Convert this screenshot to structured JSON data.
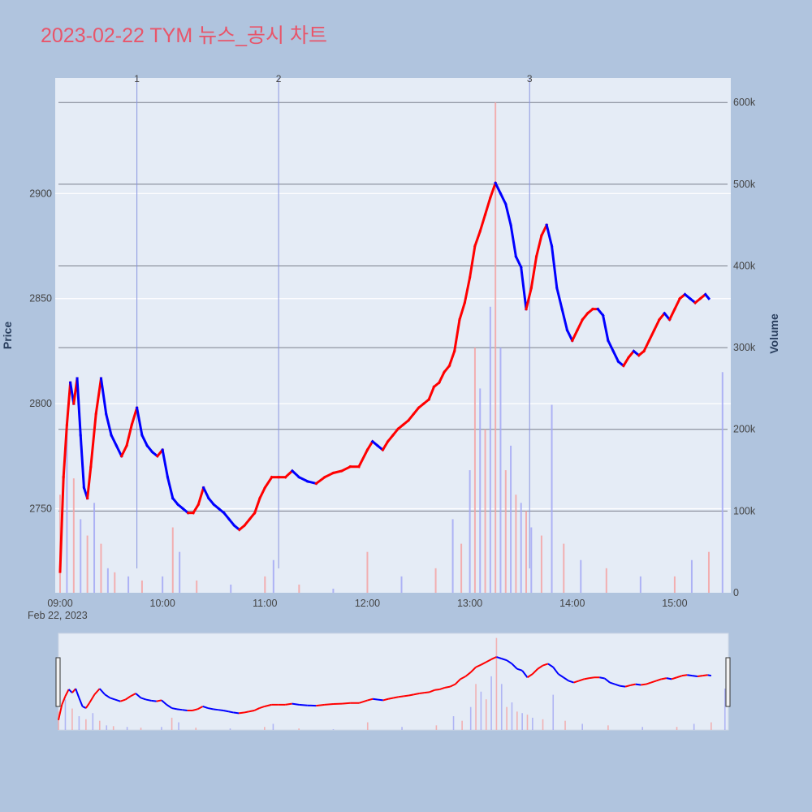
{
  "title": "2023-02-22 TYM 뉴스_공시 차트",
  "colors": {
    "page_bg": "#b0c4de",
    "plot_bg": "#e5ecf6",
    "title": "#e8556a",
    "up": "#ff0000",
    "down": "#0000ff",
    "vol_up": "#f4a3a3",
    "vol_down": "#a3a8f4",
    "event_line": "#8a95e0"
  },
  "chart_data": {
    "type": "candlestick",
    "date_label": "Feb 22, 2023",
    "x_ticks": [
      "09:00",
      "10:00",
      "11:00",
      "12:00",
      "13:00",
      "14:00",
      "15:00"
    ],
    "x_range": [
      "09:00",
      "15:30"
    ],
    "ylabel": "Price",
    "y_ticks": [
      2750,
      2800,
      2850,
      2900
    ],
    "ylim": [
      2710,
      2955
    ],
    "y2label": "Volume",
    "y2_ticks": [
      0,
      100000,
      200000,
      300000,
      400000,
      500000,
      600000
    ],
    "y2_tick_labels": [
      "0",
      "100k",
      "200k",
      "300k",
      "400k",
      "500k",
      "600k"
    ],
    "y2lim": [
      0,
      630000
    ],
    "grid": true,
    "event_markers": [
      {
        "label": "1",
        "time": "09:45"
      },
      {
        "label": "2",
        "time": "11:08"
      },
      {
        "label": "3",
        "time": "13:35"
      }
    ],
    "price_path": [
      [
        "09:00",
        2720
      ],
      [
        "09:02",
        2765
      ],
      [
        "09:04",
        2790
      ],
      [
        "09:06",
        2810
      ],
      [
        "09:08",
        2800
      ],
      [
        "09:10",
        2812
      ],
      [
        "09:12",
        2785
      ],
      [
        "09:14",
        2760
      ],
      [
        "09:16",
        2755
      ],
      [
        "09:18",
        2770
      ],
      [
        "09:21",
        2795
      ],
      [
        "09:24",
        2812
      ],
      [
        "09:27",
        2795
      ],
      [
        "09:30",
        2785
      ],
      [
        "09:33",
        2780
      ],
      [
        "09:36",
        2775
      ],
      [
        "09:39",
        2780
      ],
      [
        "09:42",
        2790
      ],
      [
        "09:45",
        2798
      ],
      [
        "09:48",
        2785
      ],
      [
        "09:51",
        2780
      ],
      [
        "09:54",
        2777
      ],
      [
        "09:57",
        2775
      ],
      [
        "10:00",
        2778
      ],
      [
        "10:03",
        2765
      ],
      [
        "10:06",
        2755
      ],
      [
        "10:09",
        2752
      ],
      [
        "10:12",
        2750
      ],
      [
        "10:15",
        2748
      ],
      [
        "10:18",
        2748
      ],
      [
        "10:21",
        2752
      ],
      [
        "10:24",
        2760
      ],
      [
        "10:27",
        2755
      ],
      [
        "10:30",
        2752
      ],
      [
        "10:33",
        2750
      ],
      [
        "10:36",
        2748
      ],
      [
        "10:39",
        2745
      ],
      [
        "10:42",
        2742
      ],
      [
        "10:45",
        2740
      ],
      [
        "10:48",
        2742
      ],
      [
        "10:51",
        2745
      ],
      [
        "10:54",
        2748
      ],
      [
        "10:57",
        2755
      ],
      [
        "11:00",
        2760
      ],
      [
        "11:04",
        2765
      ],
      [
        "11:08",
        2765
      ],
      [
        "11:12",
        2765
      ],
      [
        "11:16",
        2768
      ],
      [
        "11:20",
        2765
      ],
      [
        "11:25",
        2763
      ],
      [
        "11:30",
        2762
      ],
      [
        "11:35",
        2765
      ],
      [
        "11:40",
        2767
      ],
      [
        "11:45",
        2768
      ],
      [
        "11:50",
        2770
      ],
      [
        "11:55",
        2770
      ],
      [
        "12:00",
        2778
      ],
      [
        "12:03",
        2782
      ],
      [
        "12:06",
        2780
      ],
      [
        "12:09",
        2778
      ],
      [
        "12:12",
        2782
      ],
      [
        "12:15",
        2785
      ],
      [
        "12:18",
        2788
      ],
      [
        "12:21",
        2790
      ],
      [
        "12:24",
        2792
      ],
      [
        "12:27",
        2795
      ],
      [
        "12:30",
        2798
      ],
      [
        "12:33",
        2800
      ],
      [
        "12:36",
        2802
      ],
      [
        "12:39",
        2808
      ],
      [
        "12:42",
        2810
      ],
      [
        "12:45",
        2815
      ],
      [
        "12:48",
        2818
      ],
      [
        "12:51",
        2825
      ],
      [
        "12:54",
        2840
      ],
      [
        "12:57",
        2848
      ],
      [
        "13:00",
        2860
      ],
      [
        "13:03",
        2875
      ],
      [
        "13:06",
        2882
      ],
      [
        "13:09",
        2890
      ],
      [
        "13:12",
        2898
      ],
      [
        "13:15",
        2905
      ],
      [
        "13:18",
        2900
      ],
      [
        "13:21",
        2895
      ],
      [
        "13:24",
        2885
      ],
      [
        "13:27",
        2870
      ],
      [
        "13:30",
        2865
      ],
      [
        "13:33",
        2845
      ],
      [
        "13:36",
        2855
      ],
      [
        "13:39",
        2870
      ],
      [
        "13:42",
        2880
      ],
      [
        "13:45",
        2885
      ],
      [
        "13:48",
        2875
      ],
      [
        "13:51",
        2855
      ],
      [
        "13:54",
        2845
      ],
      [
        "13:57",
        2835
      ],
      [
        "14:00",
        2830
      ],
      [
        "14:03",
        2835
      ],
      [
        "14:06",
        2840
      ],
      [
        "14:09",
        2843
      ],
      [
        "14:12",
        2845
      ],
      [
        "14:15",
        2845
      ],
      [
        "14:18",
        2842
      ],
      [
        "14:21",
        2830
      ],
      [
        "14:24",
        2825
      ],
      [
        "14:27",
        2820
      ],
      [
        "14:30",
        2818
      ],
      [
        "14:33",
        2822
      ],
      [
        "14:36",
        2825
      ],
      [
        "14:39",
        2823
      ],
      [
        "14:42",
        2825
      ],
      [
        "14:45",
        2830
      ],
      [
        "14:48",
        2835
      ],
      [
        "14:51",
        2840
      ],
      [
        "14:54",
        2843
      ],
      [
        "14:57",
        2840
      ],
      [
        "15:00",
        2845
      ],
      [
        "15:03",
        2850
      ],
      [
        "15:06",
        2852
      ],
      [
        "15:09",
        2850
      ],
      [
        "15:12",
        2848
      ],
      [
        "15:15",
        2850
      ],
      [
        "15:18",
        2852
      ],
      [
        "15:20",
        2850
      ]
    ],
    "volume_bars": [
      [
        "09:00",
        120000
      ],
      [
        "09:04",
        200000
      ],
      [
        "09:08",
        140000
      ],
      [
        "09:12",
        90000
      ],
      [
        "09:16",
        70000
      ],
      [
        "09:20",
        110000
      ],
      [
        "09:24",
        60000
      ],
      [
        "09:28",
        30000
      ],
      [
        "09:32",
        25000
      ],
      [
        "09:40",
        20000
      ],
      [
        "09:48",
        15000
      ],
      [
        "10:00",
        20000
      ],
      [
        "10:06",
        80000
      ],
      [
        "10:10",
        50000
      ],
      [
        "10:20",
        15000
      ],
      [
        "10:40",
        10000
      ],
      [
        "11:00",
        20000
      ],
      [
        "11:05",
        40000
      ],
      [
        "11:20",
        10000
      ],
      [
        "11:40",
        5000
      ],
      [
        "12:00",
        50000
      ],
      [
        "12:20",
        20000
      ],
      [
        "12:40",
        30000
      ],
      [
        "12:50",
        90000
      ],
      [
        "12:55",
        60000
      ],
      [
        "13:00",
        150000
      ],
      [
        "13:03",
        300000
      ],
      [
        "13:06",
        250000
      ],
      [
        "13:09",
        200000
      ],
      [
        "13:12",
        350000
      ],
      [
        "13:15",
        600000
      ],
      [
        "13:18",
        300000
      ],
      [
        "13:21",
        150000
      ],
      [
        "13:24",
        180000
      ],
      [
        "13:27",
        120000
      ],
      [
        "13:30",
        110000
      ],
      [
        "13:33",
        100000
      ],
      [
        "13:36",
        80000
      ],
      [
        "13:42",
        70000
      ],
      [
        "13:48",
        230000
      ],
      [
        "13:55",
        60000
      ],
      [
        "14:05",
        40000
      ],
      [
        "14:20",
        30000
      ],
      [
        "14:40",
        20000
      ],
      [
        "15:00",
        20000
      ],
      [
        "15:10",
        40000
      ],
      [
        "15:20",
        50000
      ],
      [
        "15:28",
        270000
      ]
    ]
  },
  "range_slider": {
    "label": "range-slider"
  }
}
